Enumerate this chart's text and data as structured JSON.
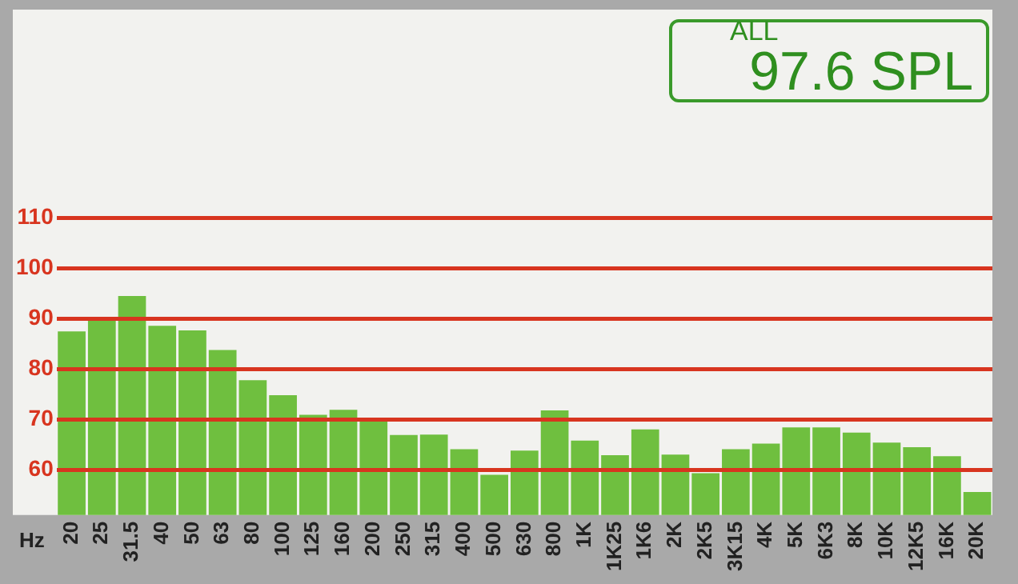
{
  "chart_data": {
    "type": "bar",
    "xlabel": "Hz",
    "categories": [
      "20",
      "25",
      "31.5",
      "40",
      "50",
      "63",
      "80",
      "100",
      "125",
      "160",
      "200",
      "250",
      "315",
      "400",
      "500",
      "630",
      "800",
      "1K",
      "1K25",
      "1K6",
      "2K",
      "2K5",
      "3K15",
      "4K",
      "5K",
      "6K3",
      "8K",
      "10K",
      "12K5",
      "16K",
      "20K"
    ],
    "values": [
      87.5,
      90,
      94.5,
      88.6,
      87.7,
      83.8,
      77.8,
      74.8,
      70.9,
      71.9,
      70,
      66.9,
      67,
      64.1,
      59,
      63.8,
      71.8,
      65.8,
      62.9,
      68,
      63,
      59.3,
      64.1,
      65.2,
      68.4,
      68.4,
      67.4,
      65.4,
      64.5,
      62.7,
      55.6
    ],
    "color": "#6fbf3f",
    "ylim": [
      51,
      150
    ],
    "yticks": [
      60,
      70,
      80,
      90,
      100,
      110
    ],
    "grid": "y",
    "annotations": [
      "ALL",
      "97.6 SPL"
    ]
  }
}
